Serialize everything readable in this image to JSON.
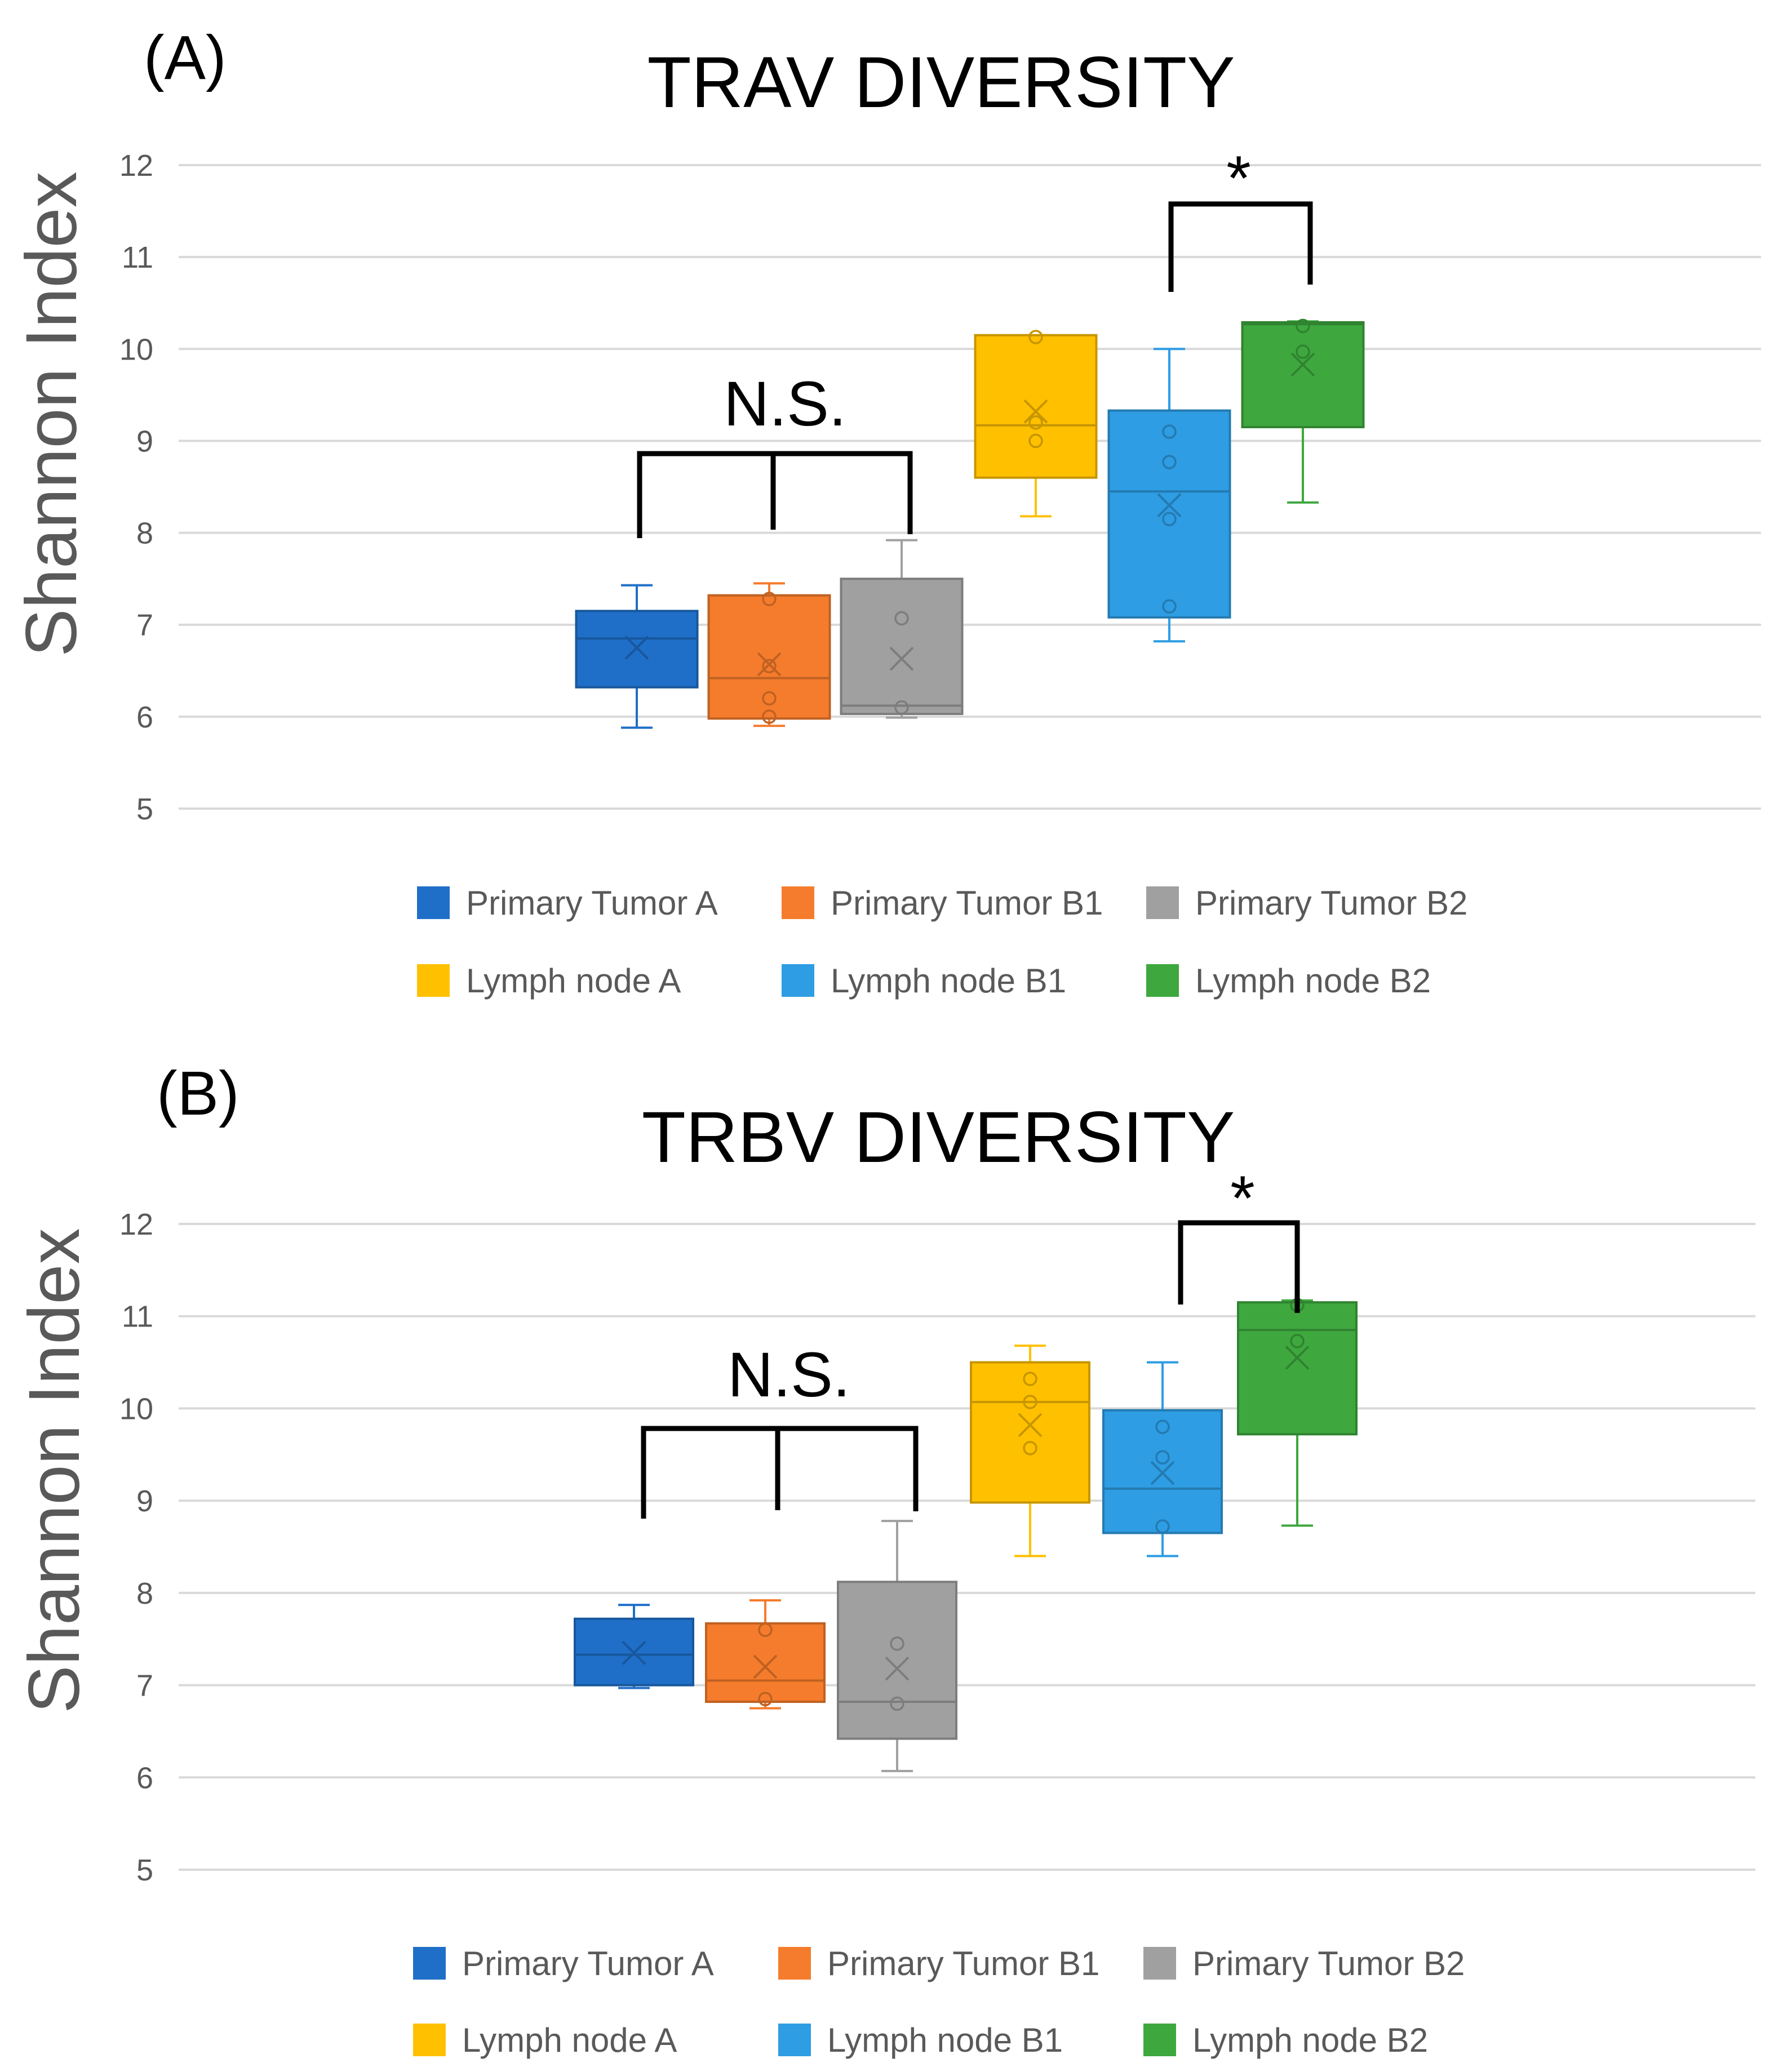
{
  "chart_data": [
    {
      "type": "box",
      "panel_label": "(A)",
      "title": "TRAV  DIVERSITY",
      "ylabel": "Shannon Index",
      "ylim": [
        5,
        12
      ],
      "yticks": [
        "5",
        "6",
        "7",
        "8",
        "9",
        "10",
        "11",
        "12"
      ],
      "grid": true,
      "legend_position": "bottom",
      "series": [
        {
          "name": "Primary Tumor A",
          "color": "#1f6fc8",
          "whisker_low": 5.88,
          "q1": 6.32,
          "median": 6.85,
          "q3": 7.15,
          "whisker_high": 7.43,
          "mean": 6.75,
          "points": []
        },
        {
          "name": "Primary Tumor B1",
          "color": "#f57c2c",
          "whisker_low": 5.9,
          "q1": 5.98,
          "median": 6.42,
          "q3": 7.32,
          "whisker_high": 7.45,
          "mean": 6.57,
          "points": [
            6.0,
            6.2,
            6.55,
            7.28
          ]
        },
        {
          "name": "Primary Tumor B2",
          "color": "#a0a0a0",
          "whisker_low": 5.99,
          "q1": 6.03,
          "median": 6.12,
          "q3": 7.5,
          "whisker_high": 7.92,
          "mean": 6.63,
          "points": [
            6.1,
            7.07
          ]
        },
        {
          "name": "Lymph node A",
          "color": "#ffc000",
          "whisker_low": 8.18,
          "q1": 8.6,
          "median": 9.17,
          "q3": 10.15,
          "whisker_high": 10.15,
          "mean": 9.32,
          "points": [
            9.0,
            9.2,
            10.13
          ]
        },
        {
          "name": "Lymph node B1",
          "color": "#2e9de3",
          "whisker_low": 6.82,
          "q1": 7.08,
          "median": 8.45,
          "q3": 9.33,
          "whisker_high": 10.0,
          "mean": 8.3,
          "points": [
            7.2,
            8.15,
            8.77,
            9.1
          ]
        },
        {
          "name": "Lymph node B2",
          "color": "#3ea83e",
          "whisker_low": 8.33,
          "q1": 9.15,
          "median": 10.27,
          "q3": 10.29,
          "whisker_high": 10.3,
          "mean": 9.83,
          "points": [
            9.97,
            10.25
          ]
        }
      ],
      "annotations": {
        "ns_label": "N.S.",
        "sig_label": "*"
      }
    },
    {
      "type": "box",
      "panel_label": "(B)",
      "title": "TRBV  DIVERSITY",
      "ylabel": "Shannon Index",
      "ylim": [
        5,
        12
      ],
      "yticks": [
        "5",
        "6",
        "7",
        "8",
        "9",
        "10",
        "11",
        "12"
      ],
      "grid": true,
      "legend_position": "bottom",
      "series": [
        {
          "name": "Primary Tumor A",
          "color": "#1f6fc8",
          "whisker_low": 6.97,
          "q1": 7.0,
          "median": 7.33,
          "q3": 7.72,
          "whisker_high": 7.87,
          "mean": 7.35,
          "points": []
        },
        {
          "name": "Primary Tumor B1",
          "color": "#f57c2c",
          "whisker_low": 6.75,
          "q1": 6.82,
          "median": 7.05,
          "q3": 7.67,
          "whisker_high": 7.92,
          "mean": 7.2,
          "points": [
            6.85,
            7.6
          ]
        },
        {
          "name": "Primary Tumor B2",
          "color": "#a0a0a0",
          "whisker_low": 6.07,
          "q1": 6.42,
          "median": 6.82,
          "q3": 8.12,
          "whisker_high": 8.78,
          "mean": 7.18,
          "points": [
            6.8,
            7.45
          ]
        },
        {
          "name": "Lymph node A",
          "color": "#ffc000",
          "whisker_low": 8.4,
          "q1": 8.98,
          "median": 10.07,
          "q3": 10.5,
          "whisker_high": 10.68,
          "mean": 9.82,
          "points": [
            9.57,
            10.07,
            10.32
          ]
        },
        {
          "name": "Lymph node B1",
          "color": "#2e9de3",
          "whisker_low": 8.4,
          "q1": 8.65,
          "median": 9.13,
          "q3": 9.98,
          "whisker_high": 10.5,
          "mean": 9.3,
          "points": [
            8.72,
            9.47,
            9.8
          ]
        },
        {
          "name": "Lymph node B2",
          "color": "#3ea83e",
          "whisker_low": 8.73,
          "q1": 9.72,
          "median": 10.85,
          "q3": 11.15,
          "whisker_high": 11.17,
          "mean": 10.55,
          "points": [
            10.73,
            11.12
          ]
        }
      ],
      "annotations": {
        "ns_label": "N.S.",
        "sig_label": "*"
      }
    }
  ]
}
